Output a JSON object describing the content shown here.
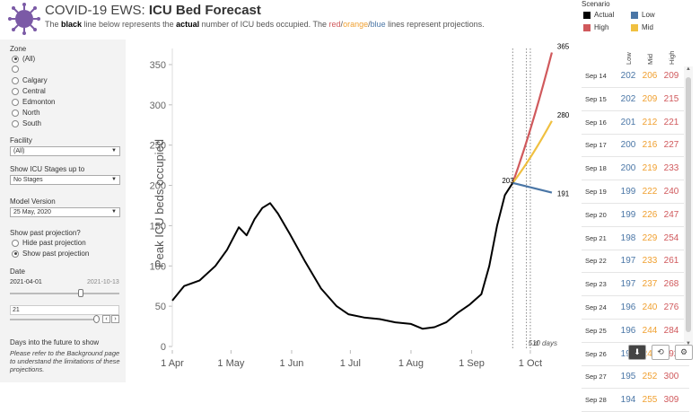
{
  "header": {
    "title_prefix": "COVID-19 EWS: ",
    "title_bold": "ICU Bed Forecast",
    "sub_1": "The ",
    "sub_black": "black",
    "sub_2": " line below represents the ",
    "sub_actual": "actual",
    "sub_3": " number of ICU beds occupied. The ",
    "sub_red": "red",
    "sub_sep1": "/",
    "sub_orange": "orange",
    "sub_sep2": "/",
    "sub_blue": "blue",
    "sub_4": " lines represent projections."
  },
  "legend": {
    "title": "Scenario",
    "items": [
      {
        "label": "Actual",
        "color": "#000000"
      },
      {
        "label": "Low",
        "color": "#4a76a6"
      },
      {
        "label": "High",
        "color": "#d0595c"
      },
      {
        "label": "Mid",
        "color": "#f0c040"
      }
    ]
  },
  "sidebar": {
    "zone_label": "Zone",
    "zones": [
      "(All)",
      "",
      "Calgary",
      "Central",
      "Edmonton",
      "North",
      "South"
    ],
    "facility_label": "Facility",
    "facility_value": "(All)",
    "icu_stages_label": "Show ICU Stages up to",
    "icu_stages_value": "No Stages",
    "model_label": "Model Version",
    "model_value": "25 May, 2020",
    "past_label": "Show past projection?",
    "past_opts": [
      "Hide past projection",
      "Show past projection"
    ],
    "date_label": "Date",
    "date_start": "2021-04-01",
    "date_end": "2021-10-13",
    "days_value": "21",
    "days_label": "Days into the future to show",
    "note": "Please refer to the Background page to understand the limitations of these projections."
  },
  "chart_data": {
    "type": "line",
    "title": "",
    "xlabel": "",
    "ylabel": "Peak ICU beds occupied",
    "ylim": [
      0,
      370
    ],
    "yticks": [
      0,
      50,
      100,
      150,
      200,
      250,
      300,
      350
    ],
    "xticks": [
      "1 Apr",
      "1 May",
      "1 Jun",
      "1 Jul",
      "1 Aug",
      "1 Sep",
      "1 Oct"
    ],
    "actual": [
      [
        0,
        57
      ],
      [
        6,
        75
      ],
      [
        14,
        82
      ],
      [
        22,
        100
      ],
      [
        28,
        120
      ],
      [
        34,
        148
      ],
      [
        38,
        138
      ],
      [
        42,
        158
      ],
      [
        46,
        172
      ],
      [
        50,
        178
      ],
      [
        54,
        165
      ],
      [
        60,
        140
      ],
      [
        68,
        105
      ],
      [
        76,
        72
      ],
      [
        84,
        50
      ],
      [
        90,
        40
      ],
      [
        98,
        36
      ],
      [
        106,
        34
      ],
      [
        114,
        30
      ],
      [
        122,
        28
      ],
      [
        128,
        22
      ],
      [
        134,
        24
      ],
      [
        140,
        30
      ],
      [
        146,
        42
      ],
      [
        152,
        52
      ],
      [
        158,
        65
      ],
      [
        162,
        100
      ],
      [
        166,
        150
      ],
      [
        170,
        188
      ],
      [
        174,
        203
      ]
    ],
    "projections": [
      {
        "name": "High",
        "color": "#d0595c",
        "points": [
          [
            174,
            203
          ],
          [
            194,
            365
          ]
        ]
      },
      {
        "name": "Mid",
        "color": "#f0c040",
        "points": [
          [
            174,
            203
          ],
          [
            194,
            280
          ]
        ]
      },
      {
        "name": "Low",
        "color": "#4a76a6",
        "points": [
          [
            174,
            203
          ],
          [
            194,
            191
          ]
        ]
      }
    ],
    "labels": [
      {
        "x": 174,
        "y": 203,
        "text": "203"
      },
      {
        "x": 194,
        "y": 365,
        "text": "365"
      },
      {
        "x": 194,
        "y": 280,
        "text": "280"
      },
      {
        "x": 194,
        "y": 191,
        "text": "191"
      }
    ],
    "markers": [
      {
        "x": 174,
        "label": ""
      },
      {
        "x": 181,
        "label": "5 d"
      },
      {
        "x": 183,
        "label": "10 days"
      }
    ]
  },
  "table": {
    "headers": [
      "Low",
      "Mid",
      "High"
    ],
    "colors": {
      "low": "#4a76a6",
      "mid": "#f0a030",
      "high": "#d0595c"
    },
    "rows": [
      {
        "d": "Sep 14",
        "low": "202",
        "mid": "206",
        "high": "209"
      },
      {
        "d": "Sep 15",
        "low": "202",
        "mid": "209",
        "high": "215"
      },
      {
        "d": "Sep 16",
        "low": "201",
        "mid": "212",
        "high": "221"
      },
      {
        "d": "Sep 17",
        "low": "200",
        "mid": "216",
        "high": "227"
      },
      {
        "d": "Sep 18",
        "low": "200",
        "mid": "219",
        "high": "233"
      },
      {
        "d": "Sep 19",
        "low": "199",
        "mid": "222",
        "high": "240"
      },
      {
        "d": "Sep 20",
        "low": "199",
        "mid": "226",
        "high": "247"
      },
      {
        "d": "Sep 21",
        "low": "198",
        "mid": "229",
        "high": "254"
      },
      {
        "d": "Sep 22",
        "low": "197",
        "mid": "233",
        "high": "261"
      },
      {
        "d": "Sep 23",
        "low": "197",
        "mid": "237",
        "high": "268"
      },
      {
        "d": "Sep 24",
        "low": "196",
        "mid": "240",
        "high": "276"
      },
      {
        "d": "Sep 25",
        "low": "196",
        "mid": "244",
        "high": "284"
      },
      {
        "d": "Sep 26",
        "low": "195",
        "mid": "248",
        "high": "292"
      },
      {
        "d": "Sep 27",
        "low": "195",
        "mid": "252",
        "high": "300"
      },
      {
        "d": "Sep 28",
        "low": "194",
        "mid": "255",
        "high": "309"
      }
    ]
  },
  "icons": {
    "download": "download-icon",
    "share": "share-icon",
    "settings": "settings-icon"
  }
}
